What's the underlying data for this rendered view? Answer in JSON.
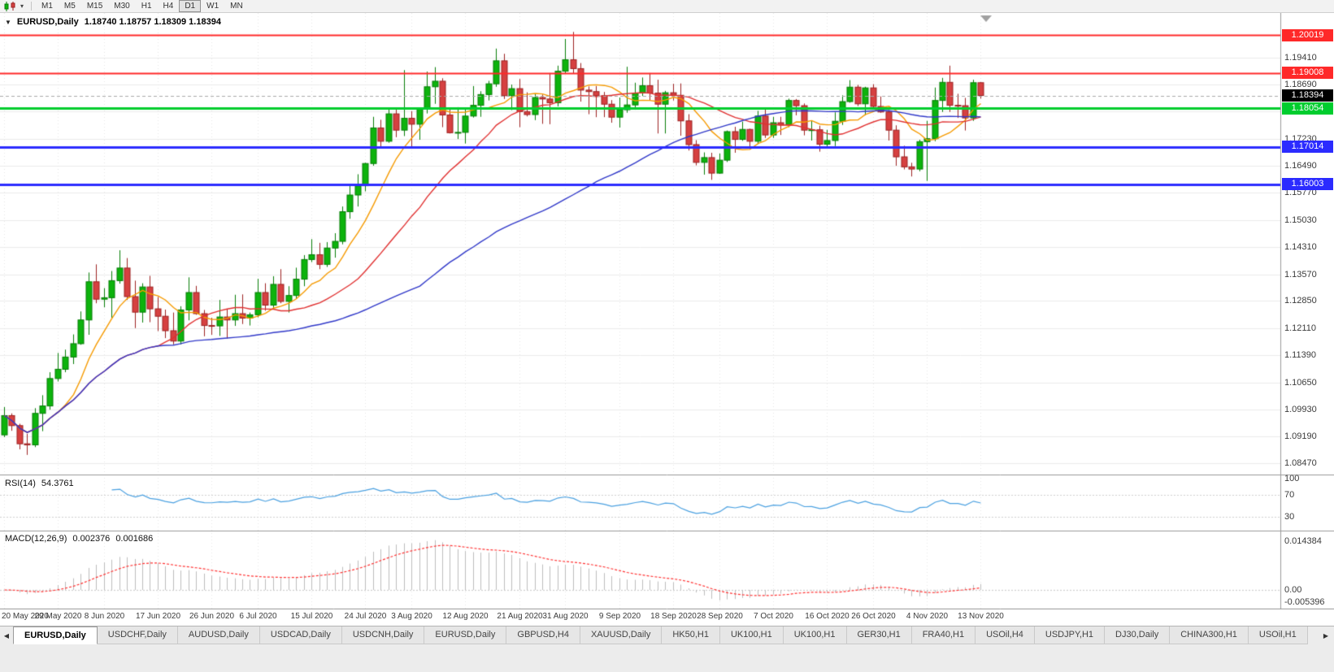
{
  "toolbar": {
    "timeframes": [
      "M1",
      "M5",
      "M15",
      "M30",
      "H1",
      "H4",
      "D1",
      "W1",
      "MN"
    ],
    "active_timeframe": "D1"
  },
  "chart": {
    "collapse_glyph": "▼",
    "symbol_period": "EURUSD,Daily",
    "ohlc_text": "1.18740 1.18757 1.18309 1.18394"
  },
  "price_scale": {
    "ticks": [
      {
        "label": "1.19410",
        "value": 1.1941
      },
      {
        "label": "1.18690",
        "value": 1.1869
      },
      {
        "label": "1.17230",
        "value": 1.1723
      },
      {
        "label": "1.16490",
        "value": 1.1649
      },
      {
        "label": "1.15770",
        "value": 1.1577
      },
      {
        "label": "1.15030",
        "value": 1.1503
      },
      {
        "label": "1.14310",
        "value": 1.1431
      },
      {
        "label": "1.13570",
        "value": 1.1357
      },
      {
        "label": "1.12850",
        "value": 1.1285
      },
      {
        "label": "1.12110",
        "value": 1.1211
      },
      {
        "label": "1.11390",
        "value": 1.1139
      },
      {
        "label": "1.10650",
        "value": 1.1065
      },
      {
        "label": "1.09930",
        "value": 1.0993
      },
      {
        "label": "1.09190",
        "value": 1.0919
      },
      {
        "label": "1.08470",
        "value": 1.0847
      }
    ]
  },
  "levels": [
    {
      "label": "1.20019",
      "value": 1.20019,
      "color": "#ff2929",
      "width": 2,
      "style": "solid"
    },
    {
      "label": "1.19008",
      "value": 1.19008,
      "color": "#ff2929",
      "width": 2,
      "style": "solid"
    },
    {
      "label": "1.18394",
      "value": 1.18394,
      "color": "#000000",
      "line_color": "#a8a8a8",
      "width": 1,
      "style": "dashed",
      "type": "current-price"
    },
    {
      "label": "1.18054",
      "value": 1.18054,
      "color": "#00cd2e",
      "width": 3,
      "style": "solid"
    },
    {
      "label": "1.17014",
      "value": 1.17014,
      "color": "#2b2bff",
      "width": 3,
      "style": "solid"
    },
    {
      "label": "1.16003",
      "value": 1.16003,
      "color": "#2b2bff",
      "width": 3,
      "style": "solid"
    }
  ],
  "rsi_panel": {
    "name": "RSI(14)",
    "value_text": "54.3761",
    "line_color": "#4aa0e0",
    "scale": [
      {
        "label": "100",
        "value": 100
      },
      {
        "label": "70",
        "value": 70
      },
      {
        "label": "30",
        "value": 30
      }
    ]
  },
  "macd_panel": {
    "name": "MACD(12,26,9)",
    "macd_value": "0.002376",
    "signal_value": "0.001686",
    "histogram_color": "#bcbcbc",
    "signal_color": "#ff3333",
    "scale": [
      {
        "label": "0.014384",
        "value": 0.014384
      },
      {
        "label": "0.00",
        "value": 0
      },
      {
        "label": "-0.005396",
        "value": -0.005396
      }
    ]
  },
  "date_axis": {
    "labels": [
      "20 May 2020",
      "29 May 2020",
      "8 Jun 2020",
      "17 Jun 2020",
      "26 Jun 2020",
      "6 Jul 2020",
      "15 Jul 2020",
      "24 Jul 2020",
      "3 Aug 2020",
      "12 Aug 2020",
      "21 Aug 2020",
      "31 Aug 2020",
      "9 Sep 2020",
      "18 Sep 2020",
      "28 Sep 2020",
      "7 Oct 2020",
      "16 Oct 2020",
      "26 Oct 2020",
      "4 Nov 2020",
      "13 Nov 2020"
    ],
    "bar_indices": [
      0,
      7,
      13,
      20,
      27,
      33,
      40,
      47,
      53,
      60,
      67,
      73,
      80,
      87,
      93,
      100,
      107,
      113,
      120,
      127
    ]
  },
  "tabs": {
    "scroll_left_glyph": "◀",
    "scroll_right_glyph": "▶",
    "active_index": 0,
    "items": [
      "EURUSD,Daily",
      "USDCHF,Daily",
      "AUDUSD,Daily",
      "USDCAD,Daily",
      "USDCNH,Daily",
      "EURUSD,Daily",
      "GBPUSD,H4",
      "XAUUSD,Daily",
      "HK50,H1",
      "UK100,H1",
      "UK100,H1",
      "GER30,H1",
      "FRA40,H1",
      "USOil,H4",
      "USDJPY,H1",
      "DJ30,Daily",
      "CHINA300,H1",
      "USOil,H1"
    ]
  },
  "chart_data": {
    "type": "candlestick",
    "symbol": "EURUSD",
    "period": "Daily",
    "price_axis": {
      "top": 1.2062,
      "bottom": 1.0817
    },
    "up_color": "#0db30d",
    "up_border": "#067d06",
    "down_color": "#d64141",
    "down_border": "#9c2121",
    "moving_averages": [
      {
        "period": 8,
        "color": "#f59a00"
      },
      {
        "period": 21,
        "color": "#e03030"
      },
      {
        "period": 55,
        "color": "#3038c8"
      }
    ],
    "candles": [
      [
        1.0924,
        1.0999,
        1.0918,
        1.0976
      ],
      [
        1.0976,
        1.0982,
        1.0935,
        1.0949
      ],
      [
        1.0949,
        1.0954,
        1.0885,
        1.09
      ],
      [
        1.09,
        1.0927,
        1.087,
        1.0897
      ],
      [
        1.0897,
        1.0996,
        1.0891,
        1.0982
      ],
      [
        1.0982,
        1.1031,
        1.0934,
        1.1002
      ],
      [
        1.1002,
        1.1093,
        1.0992,
        1.1076
      ],
      [
        1.1076,
        1.1145,
        1.1068,
        1.1101
      ],
      [
        1.1101,
        1.1154,
        1.1093,
        1.1134
      ],
      [
        1.1134,
        1.1195,
        1.1115,
        1.117
      ],
      [
        1.117,
        1.1257,
        1.1167,
        1.1234
      ],
      [
        1.1234,
        1.1362,
        1.1194,
        1.1337
      ],
      [
        1.1337,
        1.1384,
        1.1279,
        1.129
      ],
      [
        1.129,
        1.132,
        1.1268,
        1.1294
      ],
      [
        1.1294,
        1.1366,
        1.124,
        1.134
      ],
      [
        1.134,
        1.1422,
        1.1332,
        1.1374
      ],
      [
        1.1374,
        1.1401,
        1.1288,
        1.1297
      ],
      [
        1.1297,
        1.134,
        1.1212,
        1.1255
      ],
      [
        1.1255,
        1.1333,
        1.1227,
        1.1323
      ],
      [
        1.1323,
        1.1353,
        1.1228,
        1.1264
      ],
      [
        1.1264,
        1.1296,
        1.1204,
        1.1244
      ],
      [
        1.1244,
        1.1262,
        1.1185,
        1.1205
      ],
      [
        1.1205,
        1.1254,
        1.1168,
        1.1177
      ],
      [
        1.1177,
        1.1271,
        1.1168,
        1.1261
      ],
      [
        1.1261,
        1.1349,
        1.1233,
        1.1308
      ],
      [
        1.1308,
        1.1326,
        1.1248,
        1.1251
      ],
      [
        1.1251,
        1.1261,
        1.119,
        1.1219
      ],
      [
        1.1219,
        1.124,
        1.1194,
        1.1218
      ],
      [
        1.1218,
        1.1288,
        1.1191,
        1.1242
      ],
      [
        1.1242,
        1.1262,
        1.1184,
        1.1234
      ],
      [
        1.1234,
        1.1302,
        1.1218,
        1.1251
      ],
      [
        1.1251,
        1.1303,
        1.1223,
        1.1239
      ],
      [
        1.1239,
        1.1254,
        1.1219,
        1.1248
      ],
      [
        1.1248,
        1.1345,
        1.1241,
        1.1308
      ],
      [
        1.1308,
        1.1333,
        1.1259,
        1.1274
      ],
      [
        1.1274,
        1.1352,
        1.1265,
        1.133
      ],
      [
        1.133,
        1.1371,
        1.1279,
        1.1284
      ],
      [
        1.1284,
        1.1325,
        1.1254,
        1.13
      ],
      [
        1.13,
        1.1375,
        1.1292,
        1.1344
      ],
      [
        1.1344,
        1.1409,
        1.1325,
        1.1397
      ],
      [
        1.1397,
        1.1452,
        1.139,
        1.141
      ],
      [
        1.141,
        1.1442,
        1.1371,
        1.1384
      ],
      [
        1.1384,
        1.1444,
        1.1377,
        1.1428
      ],
      [
        1.1428,
        1.1468,
        1.1402,
        1.1446
      ],
      [
        1.1446,
        1.154,
        1.1438,
        1.1526
      ],
      [
        1.1526,
        1.1601,
        1.1507,
        1.1571
      ],
      [
        1.1571,
        1.1627,
        1.154,
        1.1596
      ],
      [
        1.1596,
        1.1658,
        1.1581,
        1.1656
      ],
      [
        1.1656,
        1.1782,
        1.165,
        1.1752
      ],
      [
        1.1752,
        1.1774,
        1.17,
        1.1716
      ],
      [
        1.1716,
        1.1807,
        1.1712,
        1.179
      ],
      [
        1.179,
        1.1806,
        1.1727,
        1.1746
      ],
      [
        1.1746,
        1.1908,
        1.173,
        1.1778
      ],
      [
        1.1778,
        1.1797,
        1.1696,
        1.1762
      ],
      [
        1.1762,
        1.1807,
        1.172,
        1.1804
      ],
      [
        1.1804,
        1.1904,
        1.1791,
        1.1863
      ],
      [
        1.1863,
        1.1916,
        1.1817,
        1.1878
      ],
      [
        1.1878,
        1.1886,
        1.1754,
        1.1787
      ],
      [
        1.1787,
        1.1804,
        1.1737,
        1.1739
      ],
      [
        1.1739,
        1.1808,
        1.1722,
        1.174
      ],
      [
        1.174,
        1.1807,
        1.171,
        1.1784
      ],
      [
        1.1784,
        1.1865,
        1.178,
        1.1813
      ],
      [
        1.1813,
        1.1851,
        1.1782,
        1.1842
      ],
      [
        1.1842,
        1.1879,
        1.1826,
        1.1871
      ],
      [
        1.1871,
        1.1966,
        1.1863,
        1.1933
      ],
      [
        1.1933,
        1.1952,
        1.183,
        1.1839
      ],
      [
        1.1839,
        1.1869,
        1.18,
        1.1858
      ],
      [
        1.1858,
        1.1884,
        1.1754,
        1.1796
      ],
      [
        1.1796,
        1.1848,
        1.1783,
        1.1788
      ],
      [
        1.1788,
        1.1843,
        1.1773,
        1.1834
      ],
      [
        1.1834,
        1.1842,
        1.1763,
        1.183
      ],
      [
        1.183,
        1.19,
        1.1762,
        1.182
      ],
      [
        1.182,
        1.192,
        1.181,
        1.1905
      ],
      [
        1.1905,
        1.1992,
        1.1898,
        1.1936
      ],
      [
        1.1936,
        1.2011,
        1.1898,
        1.1912
      ],
      [
        1.1912,
        1.1927,
        1.1823,
        1.1854
      ],
      [
        1.1854,
        1.1864,
        1.1789,
        1.185
      ],
      [
        1.185,
        1.1865,
        1.1781,
        1.1839
      ],
      [
        1.1839,
        1.1849,
        1.1781,
        1.1816
      ],
      [
        1.1816,
        1.1827,
        1.1766,
        1.1781
      ],
      [
        1.1781,
        1.1834,
        1.1753,
        1.1801
      ],
      [
        1.1801,
        1.1917,
        1.1793,
        1.1814
      ],
      [
        1.1814,
        1.1874,
        1.1801,
        1.1846
      ],
      [
        1.1846,
        1.1888,
        1.1838,
        1.1866
      ],
      [
        1.1866,
        1.19,
        1.1827,
        1.1846
      ],
      [
        1.1846,
        1.1882,
        1.1737,
        1.1816
      ],
      [
        1.1816,
        1.1852,
        1.1737,
        1.1847
      ],
      [
        1.1847,
        1.1871,
        1.1826,
        1.184
      ],
      [
        1.184,
        1.1872,
        1.1731,
        1.1771
      ],
      [
        1.1771,
        1.1789,
        1.1691,
        1.1707
      ],
      [
        1.1707,
        1.1719,
        1.1651,
        1.1659
      ],
      [
        1.1659,
        1.1686,
        1.1626,
        1.1672
      ],
      [
        1.1672,
        1.1685,
        1.1612,
        1.163
      ],
      [
        1.163,
        1.1683,
        1.1628,
        1.1665
      ],
      [
        1.1665,
        1.1745,
        1.166,
        1.1742
      ],
      [
        1.1742,
        1.1755,
        1.1685,
        1.1721
      ],
      [
        1.1721,
        1.1769,
        1.1717,
        1.1748
      ],
      [
        1.1748,
        1.175,
        1.1695,
        1.1716
      ],
      [
        1.1716,
        1.1798,
        1.1708,
        1.1784
      ],
      [
        1.1784,
        1.1807,
        1.1725,
        1.1733
      ],
      [
        1.1733,
        1.1782,
        1.1725,
        1.1766
      ],
      [
        1.1766,
        1.1782,
        1.1733,
        1.176
      ],
      [
        1.176,
        1.1831,
        1.1754,
        1.1826
      ],
      [
        1.1826,
        1.183,
        1.1786,
        1.1812
      ],
      [
        1.1812,
        1.1818,
        1.1732,
        1.1746
      ],
      [
        1.1746,
        1.1771,
        1.1718,
        1.1747
      ],
      [
        1.1747,
        1.1758,
        1.1688,
        1.1708
      ],
      [
        1.1708,
        1.1747,
        1.1696,
        1.1718
      ],
      [
        1.1718,
        1.1794,
        1.1703,
        1.177
      ],
      [
        1.177,
        1.184,
        1.176,
        1.1823
      ],
      [
        1.1823,
        1.1881,
        1.182,
        1.1862
      ],
      [
        1.1862,
        1.1868,
        1.1811,
        1.1817
      ],
      [
        1.1817,
        1.1863,
        1.1786,
        1.186
      ],
      [
        1.186,
        1.187,
        1.1803,
        1.181
      ],
      [
        1.181,
        1.1837,
        1.1793,
        1.1795
      ],
      [
        1.1795,
        1.18,
        1.1718,
        1.1746
      ],
      [
        1.1746,
        1.1759,
        1.165,
        1.1674
      ],
      [
        1.1674,
        1.1704,
        1.164,
        1.1647
      ],
      [
        1.1647,
        1.1658,
        1.1621,
        1.1641
      ],
      [
        1.1641,
        1.172,
        1.1635,
        1.1715
      ],
      [
        1.1715,
        1.1771,
        1.1609,
        1.1723
      ],
      [
        1.1723,
        1.1861,
        1.1716,
        1.1826
      ],
      [
        1.1826,
        1.1887,
        1.1795,
        1.1875
      ],
      [
        1.1875,
        1.192,
        1.1795,
        1.1813
      ],
      [
        1.1813,
        1.1844,
        1.1779,
        1.1812
      ],
      [
        1.1812,
        1.1833,
        1.1745,
        1.1779
      ],
      [
        1.1779,
        1.1882,
        1.1771,
        1.1874
      ],
      [
        1.1874,
        1.18757,
        1.18309,
        1.18394
      ]
    ]
  }
}
